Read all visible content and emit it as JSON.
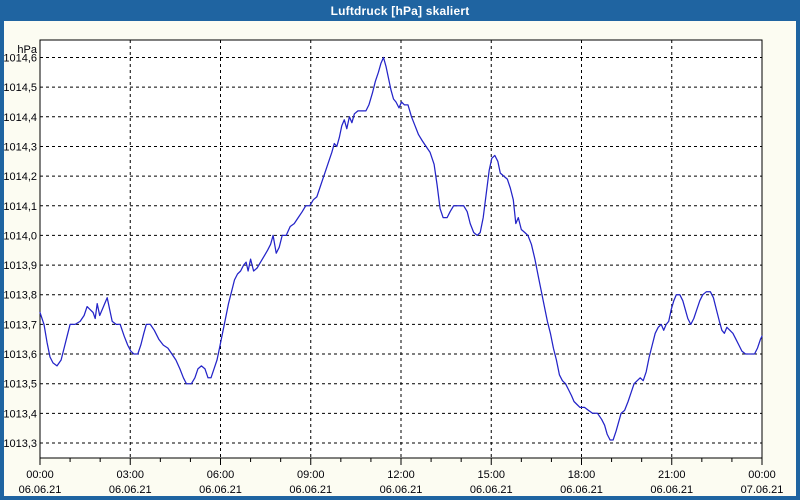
{
  "window": {
    "title": "Luftdruck [hPa] skaliert"
  },
  "colors": {
    "titlebar": "#1f64a1",
    "window_border": "#1f64a1",
    "content_bg": "#fcfcf2",
    "plot_bg": "#ffffff",
    "grid": "#000000",
    "axis": "#000000",
    "label_text": "#000008",
    "line": "#2424c8",
    "title_text": "#ffffff"
  },
  "chart_data": {
    "type": "line",
    "title": "Luftdruck [hPa] skaliert",
    "ylabel": "hPa",
    "legend": "none",
    "grid": "dashed black, horizontal every 0.1 hPa, vertical every 3 h",
    "x_unit": "minutes_since_midnight_06.06.21",
    "xlim": [
      0,
      1440
    ],
    "ylim": [
      1013.3,
      1014.6
    ],
    "minor_x_tick_minutes": 60,
    "y_ticks": [
      {
        "value": 1014.6,
        "label": "1014,6"
      },
      {
        "value": 1014.5,
        "label": "1014,5"
      },
      {
        "value": 1014.4,
        "label": "1014,4"
      },
      {
        "value": 1014.3,
        "label": "1014,3"
      },
      {
        "value": 1014.2,
        "label": "1014,2"
      },
      {
        "value": 1014.1,
        "label": "1014,1"
      },
      {
        "value": 1014.0,
        "label": "1014,0"
      },
      {
        "value": 1013.9,
        "label": "1013,9"
      },
      {
        "value": 1013.8,
        "label": "1013,8"
      },
      {
        "value": 1013.7,
        "label": "1013,7"
      },
      {
        "value": 1013.6,
        "label": "1013,6"
      },
      {
        "value": 1013.5,
        "label": "1013,5"
      },
      {
        "value": 1013.4,
        "label": "1013,4"
      },
      {
        "value": 1013.3,
        "label": "1013,3"
      }
    ],
    "x_ticks": [
      {
        "minutes": 0,
        "time": "00:00",
        "date": "06.06.21"
      },
      {
        "minutes": 180,
        "time": "03:00",
        "date": "06.06.21"
      },
      {
        "minutes": 360,
        "time": "06:00",
        "date": "06.06.21"
      },
      {
        "minutes": 540,
        "time": "09:00",
        "date": "06.06.21"
      },
      {
        "minutes": 720,
        "time": "12:00",
        "date": "06.06.21"
      },
      {
        "minutes": 900,
        "time": "15:00",
        "date": "06.06.21"
      },
      {
        "minutes": 1080,
        "time": "18:00",
        "date": "06.06.21"
      },
      {
        "minutes": 1260,
        "time": "21:00",
        "date": "06.06.21"
      },
      {
        "minutes": 1440,
        "time": "00:00",
        "date": "07.06.21"
      }
    ],
    "series": [
      {
        "name": "Luftdruck",
        "color": "#2424c8",
        "points": [
          [
            0,
            1013.74
          ],
          [
            8,
            1013.7
          ],
          [
            14,
            1013.64
          ],
          [
            20,
            1013.59
          ],
          [
            26,
            1013.57
          ],
          [
            34,
            1013.56
          ],
          [
            42,
            1013.58
          ],
          [
            48,
            1013.62
          ],
          [
            54,
            1013.66
          ],
          [
            60,
            1013.7
          ],
          [
            70,
            1013.7
          ],
          [
            80,
            1013.71
          ],
          [
            88,
            1013.73
          ],
          [
            94,
            1013.76
          ],
          [
            100,
            1013.75
          ],
          [
            106,
            1013.74
          ],
          [
            110,
            1013.72
          ],
          [
            114,
            1013.77
          ],
          [
            119,
            1013.73
          ],
          [
            124,
            1013.75
          ],
          [
            129,
            1013.77
          ],
          [
            134,
            1013.79
          ],
          [
            139,
            1013.75
          ],
          [
            144,
            1013.71
          ],
          [
            152,
            1013.7
          ],
          [
            160,
            1013.7
          ],
          [
            168,
            1013.66
          ],
          [
            175,
            1013.63
          ],
          [
            181,
            1013.61
          ],
          [
            187,
            1013.6
          ],
          [
            195,
            1013.6
          ],
          [
            201,
            1013.63
          ],
          [
            207,
            1013.67
          ],
          [
            212,
            1013.7
          ],
          [
            220,
            1013.7
          ],
          [
            228,
            1013.68
          ],
          [
            237,
            1013.65
          ],
          [
            246,
            1013.63
          ],
          [
            255,
            1013.62
          ],
          [
            263,
            1013.6
          ],
          [
            271,
            1013.58
          ],
          [
            279,
            1013.55
          ],
          [
            286,
            1013.52
          ],
          [
            292,
            1013.5
          ],
          [
            302,
            1013.5
          ],
          [
            309,
            1013.52
          ],
          [
            315,
            1013.55
          ],
          [
            322,
            1013.56
          ],
          [
            329,
            1013.55
          ],
          [
            335,
            1013.52
          ],
          [
            341,
            1013.52
          ],
          [
            347,
            1013.55
          ],
          [
            353,
            1013.58
          ],
          [
            358,
            1013.62
          ],
          [
            364,
            1013.67
          ],
          [
            370,
            1013.72
          ],
          [
            376,
            1013.77
          ],
          [
            382,
            1013.81
          ],
          [
            388,
            1013.85
          ],
          [
            394,
            1013.87
          ],
          [
            400,
            1013.88
          ],
          [
            406,
            1013.9
          ],
          [
            411,
            1013.91
          ],
          [
            415,
            1013.88
          ],
          [
            420,
            1013.92
          ],
          [
            426,
            1013.88
          ],
          [
            433,
            1013.89
          ],
          [
            440,
            1013.91
          ],
          [
            447,
            1013.93
          ],
          [
            454,
            1013.95
          ],
          [
            460,
            1013.97
          ],
          [
            465,
            1014.0
          ],
          [
            471,
            1013.94
          ],
          [
            477,
            1013.96
          ],
          [
            483,
            1014.0
          ],
          [
            491,
            1014.0
          ],
          [
            499,
            1014.03
          ],
          [
            507,
            1014.04
          ],
          [
            515,
            1014.06
          ],
          [
            523,
            1014.08
          ],
          [
            530,
            1014.1
          ],
          [
            538,
            1014.1
          ],
          [
            545,
            1014.12
          ],
          [
            552,
            1014.13
          ],
          [
            558,
            1014.16
          ],
          [
            564,
            1014.19
          ],
          [
            570,
            1014.22
          ],
          [
            576,
            1014.25
          ],
          [
            582,
            1014.28
          ],
          [
            587,
            1014.31
          ],
          [
            592,
            1014.3
          ],
          [
            597,
            1014.33
          ],
          [
            602,
            1014.37
          ],
          [
            607,
            1014.39
          ],
          [
            612,
            1014.36
          ],
          [
            617,
            1014.4
          ],
          [
            622,
            1014.38
          ],
          [
            627,
            1014.41
          ],
          [
            634,
            1014.42
          ],
          [
            642,
            1014.42
          ],
          [
            650,
            1014.42
          ],
          [
            656,
            1014.44
          ],
          [
            663,
            1014.48
          ],
          [
            669,
            1014.52
          ],
          [
            675,
            1014.55
          ],
          [
            680,
            1014.58
          ],
          [
            685,
            1014.6
          ],
          [
            690,
            1014.57
          ],
          [
            695,
            1014.53
          ],
          [
            700,
            1014.49
          ],
          [
            705,
            1014.46
          ],
          [
            710,
            1014.45
          ],
          [
            716,
            1014.43
          ],
          [
            721,
            1014.45
          ],
          [
            727,
            1014.44
          ],
          [
            734,
            1014.44
          ],
          [
            741,
            1014.4
          ],
          [
            748,
            1014.37
          ],
          [
            755,
            1014.34
          ],
          [
            762,
            1014.32
          ],
          [
            770,
            1014.3
          ],
          [
            778,
            1014.28
          ],
          [
            786,
            1014.24
          ],
          [
            792,
            1014.17
          ],
          [
            798,
            1014.09
          ],
          [
            804,
            1014.06
          ],
          [
            812,
            1014.06
          ],
          [
            818,
            1014.08
          ],
          [
            825,
            1014.1
          ],
          [
            835,
            1014.1
          ],
          [
            845,
            1014.1
          ],
          [
            852,
            1014.08
          ],
          [
            858,
            1014.04
          ],
          [
            865,
            1014.01
          ],
          [
            872,
            1014.0
          ],
          [
            878,
            1014.01
          ],
          [
            884,
            1014.06
          ],
          [
            890,
            1014.14
          ],
          [
            896,
            1014.22
          ],
          [
            901,
            1014.26
          ],
          [
            907,
            1014.27
          ],
          [
            913,
            1014.25
          ],
          [
            918,
            1014.21
          ],
          [
            925,
            1014.2
          ],
          [
            932,
            1014.19
          ],
          [
            938,
            1014.16
          ],
          [
            944,
            1014.12
          ],
          [
            949,
            1014.04
          ],
          [
            954,
            1014.06
          ],
          [
            960,
            1014.02
          ],
          [
            967,
            1014.01
          ],
          [
            973,
            1014.0
          ],
          [
            980,
            1013.97
          ],
          [
            987,
            1013.92
          ],
          [
            994,
            1013.86
          ],
          [
            1000,
            1013.81
          ],
          [
            1006,
            1013.76
          ],
          [
            1012,
            1013.71
          ],
          [
            1018,
            1013.67
          ],
          [
            1024,
            1013.62
          ],
          [
            1030,
            1013.58
          ],
          [
            1036,
            1013.53
          ],
          [
            1042,
            1013.51
          ],
          [
            1048,
            1013.5
          ],
          [
            1054,
            1013.48
          ],
          [
            1060,
            1013.46
          ],
          [
            1065,
            1013.44
          ],
          [
            1071,
            1013.43
          ],
          [
            1077,
            1013.42
          ],
          [
            1086,
            1013.42
          ],
          [
            1094,
            1013.41
          ],
          [
            1102,
            1013.4
          ],
          [
            1112,
            1013.4
          ],
          [
            1120,
            1013.38
          ],
          [
            1126,
            1013.36
          ],
          [
            1131,
            1013.33
          ],
          [
            1137,
            1013.31
          ],
          [
            1143,
            1013.31
          ],
          [
            1149,
            1013.34
          ],
          [
            1154,
            1013.37
          ],
          [
            1159,
            1013.4
          ],
          [
            1166,
            1013.41
          ],
          [
            1173,
            1013.44
          ],
          [
            1179,
            1013.47
          ],
          [
            1185,
            1013.5
          ],
          [
            1191,
            1013.51
          ],
          [
            1197,
            1013.52
          ],
          [
            1203,
            1013.51
          ],
          [
            1209,
            1013.54
          ],
          [
            1215,
            1013.59
          ],
          [
            1221,
            1013.63
          ],
          [
            1227,
            1013.67
          ],
          [
            1233,
            1013.69
          ],
          [
            1239,
            1013.7
          ],
          [
            1244,
            1013.68
          ],
          [
            1249,
            1013.7
          ],
          [
            1254,
            1013.71
          ],
          [
            1259,
            1013.75
          ],
          [
            1264,
            1013.78
          ],
          [
            1269,
            1013.8
          ],
          [
            1276,
            1013.8
          ],
          [
            1282,
            1013.78
          ],
          [
            1287,
            1013.75
          ],
          [
            1292,
            1013.72
          ],
          [
            1298,
            1013.7
          ],
          [
            1304,
            1013.72
          ],
          [
            1310,
            1013.75
          ],
          [
            1316,
            1013.78
          ],
          [
            1322,
            1013.8
          ],
          [
            1329,
            1013.81
          ],
          [
            1337,
            1013.81
          ],
          [
            1343,
            1013.79
          ],
          [
            1349,
            1013.75
          ],
          [
            1355,
            1013.71
          ],
          [
            1360,
            1013.68
          ],
          [
            1365,
            1013.67
          ],
          [
            1370,
            1013.69
          ],
          [
            1376,
            1013.68
          ],
          [
            1382,
            1013.67
          ],
          [
            1388,
            1013.65
          ],
          [
            1394,
            1013.63
          ],
          [
            1400,
            1013.61
          ],
          [
            1407,
            1013.6
          ],
          [
            1416,
            1013.6
          ],
          [
            1425,
            1013.6
          ],
          [
            1431,
            1013.62
          ],
          [
            1437,
            1013.65
          ],
          [
            1440,
            1013.66
          ]
        ]
      }
    ]
  }
}
